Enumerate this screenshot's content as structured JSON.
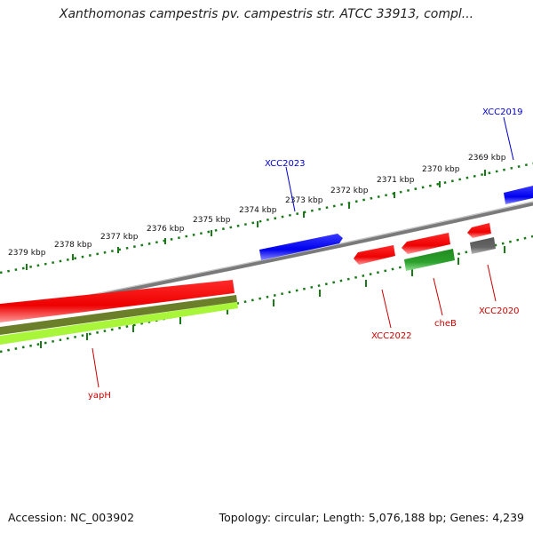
{
  "title": "Xanthomonas campestris pv. campestris str. ATCC 33913, compl...",
  "footer": {
    "accession": "Accession: NC_003902",
    "summary": "Topology: circular; Length: 5,076,188 bp; Genes: 4,239"
  },
  "ruler_labels": [
    "2379 kbp",
    "2378 kbp",
    "2377 kbp",
    "2376 kbp",
    "2375 kbp",
    "2374 kbp",
    "2373 kbp",
    "2372 kbp",
    "2371 kbp",
    "2370 kbp",
    "2369 kbp"
  ],
  "gene_labels": {
    "xcc2023": "XCC2023",
    "xcc2019": "XCC2019",
    "xcc2022": "XCC2022",
    "cheb": "cheB",
    "xcc2020": "XCC2020",
    "yaph": "yapH"
  },
  "colors": {
    "forward_gene": "#0000ff",
    "reverse_gene": "#ff0000",
    "backbone": "#808080",
    "ticks": "#1a7a1a",
    "other_gene": "#666666",
    "green_feature": "#2ca02c",
    "lime_feature": "#a8f53a",
    "olive_feature": "#6b7f2a"
  }
}
